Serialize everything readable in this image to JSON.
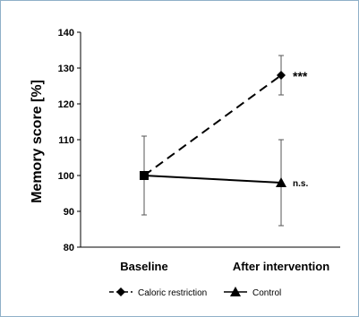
{
  "chart_data": {
    "type": "line",
    "categories": [
      "Baseline",
      "After intervention"
    ],
    "ylabel": "Memory score [%]",
    "ylim": [
      80,
      140
    ],
    "yticks": [
      80,
      90,
      100,
      110,
      120,
      130,
      140
    ],
    "grid": false,
    "legend_position": "bottom",
    "series": [
      {
        "name": "Caloric restriction",
        "values": [
          100,
          128
        ],
        "errors": [
          11,
          5.5
        ],
        "line_style": "dashed",
        "marker": "diamond",
        "annotation": "***"
      },
      {
        "name": "Control",
        "values": [
          100,
          98
        ],
        "errors": [
          11,
          12
        ],
        "line_style": "solid",
        "marker": "triangle",
        "annotation": "n.s."
      }
    ],
    "colors": {
      "line": "#000000",
      "frame": "#8fb0c8"
    }
  }
}
